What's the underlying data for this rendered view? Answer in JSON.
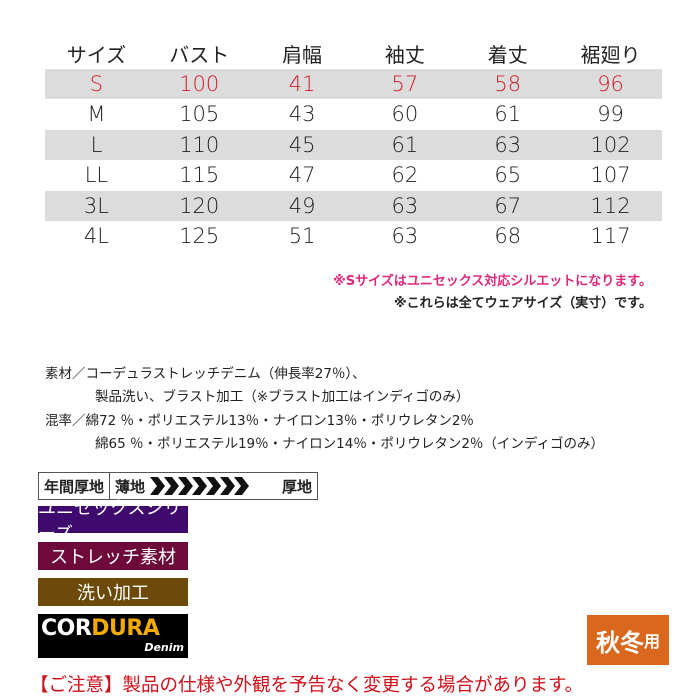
{
  "table": {
    "headers": [
      "サイズ",
      "バスト",
      "肩幅",
      "袖丈",
      "着丈",
      "裾廻り"
    ],
    "rows": [
      [
        "S",
        "100",
        "41",
        "57",
        "58",
        "96"
      ],
      [
        "M",
        "105",
        "43",
        "60",
        "61",
        "99"
      ],
      [
        "L",
        "110",
        "45",
        "61",
        "63",
        "102"
      ],
      [
        "LL",
        "115",
        "47",
        "62",
        "65",
        "107"
      ],
      [
        "3L",
        "120",
        "49",
        "63",
        "67",
        "112"
      ],
      [
        "4L",
        "125",
        "51",
        "63",
        "68",
        "117"
      ]
    ]
  },
  "notes": [
    "※Sサイズはユニセックス対応シルエットになります。",
    "※これらは全てウェアサイズ（実寸）です。"
  ],
  "material": [
    "素材／コーデュラストレッチデニム（伸長率27％）、",
    "製品洗い、ブラスト加工（※ブラスト加工はインディゴのみ）",
    "混率／綿72 ％・ポリエステル13％・ナイロン13％・ポリウレタン2％",
    "綿65 ％・ポリエステル19％・ナイロン14％・ポリウレタン2％（インディゴのみ）"
  ],
  "thickness": {
    "label": "年間厚地",
    "thin": "薄地",
    "thick": "厚地"
  },
  "badges": {
    "unisex": "ユニセックスシリーズ",
    "stretch": "ストレッチ素材",
    "washed": "洗い加工",
    "cordura": "CORDURA",
    "cordura_sub": "Denim",
    "season_main": "秋冬",
    "season_suffix": "用"
  },
  "caution": "【ご注意】製品の仕様や外観を予告なく変更する場合があります。",
  "colors": {
    "highlight_red": "#d01a2a",
    "note_pink": "#e0287a",
    "unisex": "#3f0a6e",
    "stretch": "#6e0a3a",
    "washed": "#6b4a0a",
    "season": "#d9671e",
    "cordura_gold": "#f2a900"
  }
}
